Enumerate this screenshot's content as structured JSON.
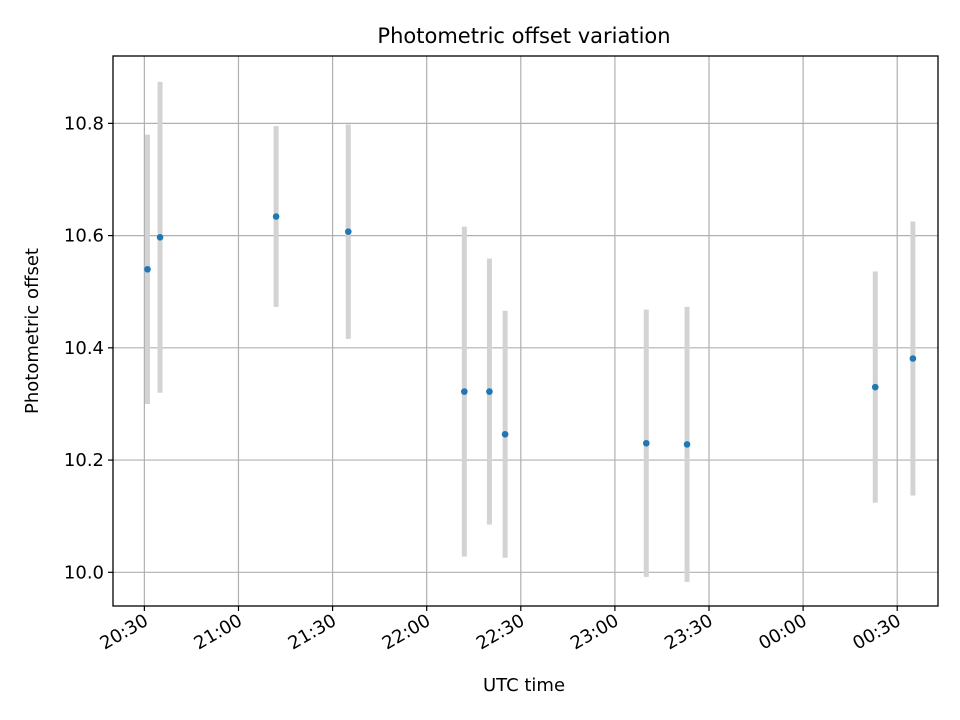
{
  "chart_data": {
    "type": "scatter",
    "title": "Photometric offset variation",
    "xlabel": "UTC time",
    "ylabel": "Photometric offset",
    "x_axis_kind": "time",
    "x_reference_date": "",
    "xlim": [
      "20:20",
      "00:43"
    ],
    "ylim": [
      9.94,
      10.92
    ],
    "x_ticks": [
      "20:30",
      "21:00",
      "21:30",
      "22:00",
      "22:30",
      "23:00",
      "23:30",
      "00:00",
      "00:30"
    ],
    "y_ticks": [
      10.0,
      10.2,
      10.4,
      10.6,
      10.8
    ],
    "y_tick_labels": [
      "10.0",
      "10.2",
      "10.4",
      "10.6",
      "10.8"
    ],
    "grid": true,
    "series": [
      {
        "marker_color": "#1f77b4",
        "errorbar_color": "#d3d3d3",
        "points": [
          {
            "x": "20:31",
            "y": 10.54,
            "yerr": 0.24
          },
          {
            "x": "20:35",
            "y": 10.597,
            "yerr": 0.277
          },
          {
            "x": "21:12",
            "y": 10.634,
            "yerr": 0.161
          },
          {
            "x": "21:35",
            "y": 10.607,
            "yerr": 0.191
          },
          {
            "x": "22:12",
            "y": 10.322,
            "yerr": 0.294
          },
          {
            "x": "22:20",
            "y": 10.322,
            "yerr": 0.237
          },
          {
            "x": "22:25",
            "y": 10.246,
            "yerr": 0.22
          },
          {
            "x": "23:10",
            "y": 10.23,
            "yerr": 0.238
          },
          {
            "x": "23:23",
            "y": 10.228,
            "yerr": 0.245
          },
          {
            "x": "00:23",
            "y": 10.33,
            "yerr": 0.206
          },
          {
            "x": "00:35",
            "y": 10.381,
            "yerr": 0.244
          }
        ]
      }
    ]
  }
}
